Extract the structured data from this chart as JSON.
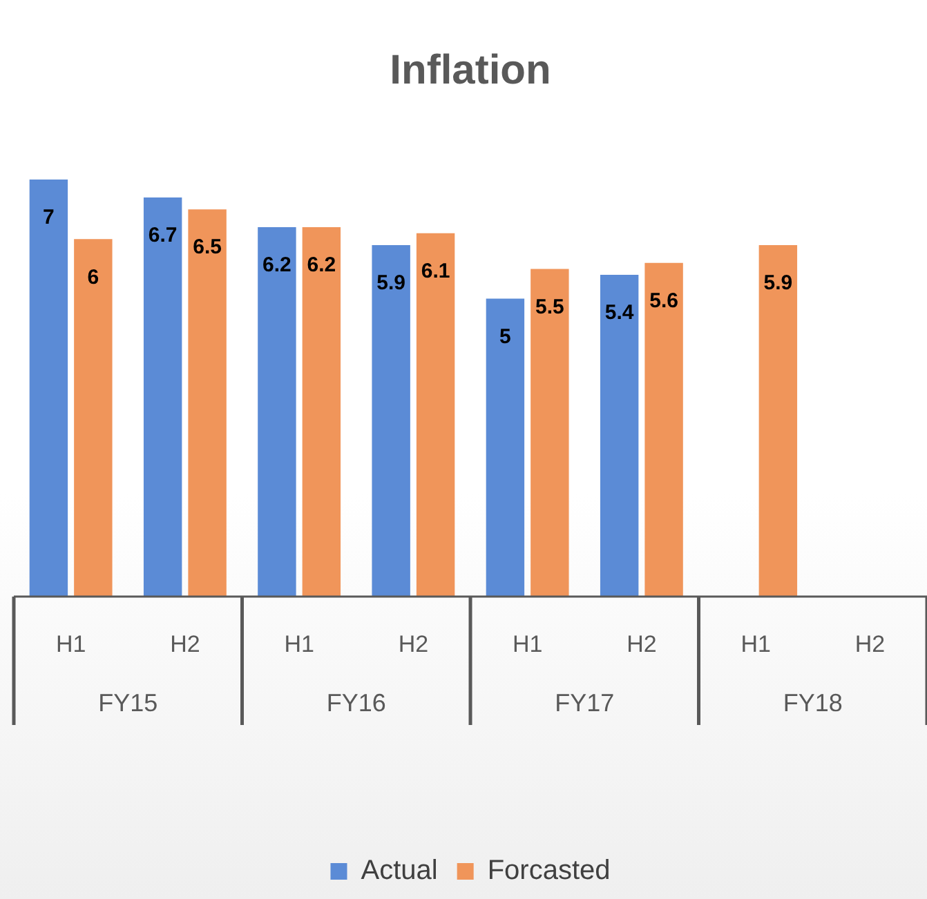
{
  "chart_data": {
    "type": "bar",
    "title": "Inflation",
    "categories": [
      "H1",
      "H2",
      "H1",
      "H2",
      "H1",
      "H2",
      "H1",
      "H2"
    ],
    "series": [
      {
        "name": "Actual",
        "color": "#5b8bd6",
        "values": [
          7,
          6.7,
          6.2,
          5.9,
          5,
          5.4,
          null,
          null
        ]
      },
      {
        "name": "Forcasted",
        "color": "#f0955a",
        "values": [
          6,
          6.5,
          6.2,
          6.1,
          5.5,
          5.6,
          5.9,
          null
        ]
      }
    ],
    "annotations": [
      "FY15",
      "FY16",
      "FY17",
      "FY18"
    ],
    "data_labels": true,
    "tick_labels": "x",
    "legend": "bottom"
  }
}
